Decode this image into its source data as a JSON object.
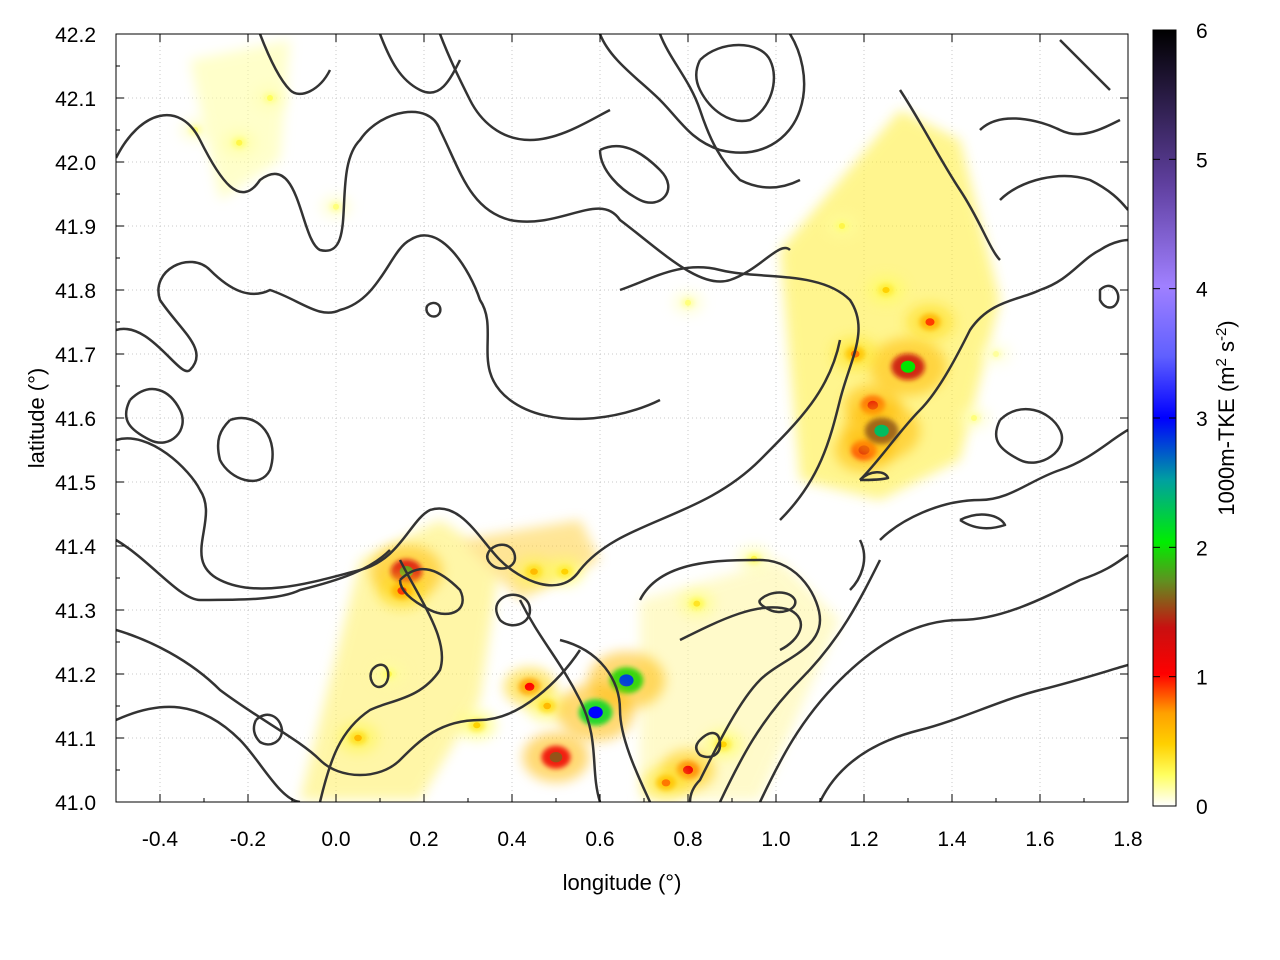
{
  "chart_data": {
    "type": "heatmap",
    "xlabel": "longitude (°)",
    "ylabel": "latitude (°)",
    "xlim": [
      -0.5,
      1.8
    ],
    "ylim": [
      41.0,
      42.2
    ],
    "x_ticks": [
      "-0.4",
      "-0.2",
      "0.0",
      "0.2",
      "0.4",
      "0.6",
      "0.8",
      "1.0",
      "1.2",
      "1.4",
      "1.6",
      "1.8"
    ],
    "y_ticks": [
      "41.0",
      "41.1",
      "41.2",
      "41.3",
      "41.4",
      "41.5",
      "41.6",
      "41.7",
      "41.8",
      "41.9",
      "42.0",
      "42.1",
      "42.2"
    ],
    "grid": true,
    "colorbar": {
      "label_main": "1000m-TKE (m",
      "sup1": "2",
      "label_mid": " s",
      "sup2": "-2",
      "label_end": ")",
      "range": [
        0,
        6
      ],
      "ticks": [
        "0",
        "1",
        "2",
        "3",
        "4",
        "5",
        "6"
      ],
      "palette": [
        "#ffffff",
        "#ffff00",
        "#ffa000",
        "#ff0000",
        "#a01010",
        "#00cc00",
        "#0000ff",
        "#a070ff",
        "#000000"
      ]
    },
    "tke_hotspots": [
      {
        "lon": 1.22,
        "lat": 41.62,
        "value": 1.2
      },
      {
        "lon": 1.2,
        "lat": 41.55,
        "value": 1.3
      },
      {
        "lon": 1.3,
        "lat": 41.68,
        "value": 2.0
      },
      {
        "lon": 1.24,
        "lat": 41.58,
        "value": 2.3
      },
      {
        "lon": 1.18,
        "lat": 41.7,
        "value": 0.8
      },
      {
        "lon": 1.25,
        "lat": 41.8,
        "value": 0.5
      },
      {
        "lon": 1.15,
        "lat": 41.9,
        "value": 0.3
      },
      {
        "lon": 1.35,
        "lat": 41.75,
        "value": 0.9
      },
      {
        "lon": 0.16,
        "lat": 41.36,
        "value": 1.8
      },
      {
        "lon": 0.15,
        "lat": 41.33,
        "value": 0.9
      },
      {
        "lon": 0.45,
        "lat": 41.36,
        "value": 0.6
      },
      {
        "lon": 0.52,
        "lat": 41.36,
        "value": 0.5
      },
      {
        "lon": 0.44,
        "lat": 41.18,
        "value": 1.0
      },
      {
        "lon": 0.48,
        "lat": 41.15,
        "value": 0.6
      },
      {
        "lon": 0.5,
        "lat": 41.07,
        "value": 1.6
      },
      {
        "lon": 0.66,
        "lat": 41.19,
        "value": 2.8
      },
      {
        "lon": 0.59,
        "lat": 41.14,
        "value": 3.0
      },
      {
        "lon": 0.8,
        "lat": 41.05,
        "value": 1.1
      },
      {
        "lon": 0.75,
        "lat": 41.03,
        "value": 0.8
      },
      {
        "lon": 0.88,
        "lat": 41.09,
        "value": 0.5
      },
      {
        "lon": 0.05,
        "lat": 41.1,
        "value": 0.6
      },
      {
        "lon": 0.32,
        "lat": 41.12,
        "value": 0.5
      },
      {
        "lon": 0.12,
        "lat": 41.2,
        "value": 0.3
      },
      {
        "lon": 0.82,
        "lat": 41.31,
        "value": 0.4
      },
      {
        "lon": 0.95,
        "lat": 41.38,
        "value": 0.3
      },
      {
        "lon": -0.15,
        "lat": 42.1,
        "value": 0.25
      },
      {
        "lon": -0.22,
        "lat": 42.03,
        "value": 0.3
      },
      {
        "lon": -0.32,
        "lat": 42.05,
        "value": 0.2
      },
      {
        "lon": 0.0,
        "lat": 41.93,
        "value": 0.2
      },
      {
        "lon": 1.45,
        "lat": 41.6,
        "value": 0.2
      },
      {
        "lon": 1.5,
        "lat": 41.7,
        "value": 0.15
      },
      {
        "lon": 0.8,
        "lat": 41.78,
        "value": 0.2
      }
    ]
  }
}
